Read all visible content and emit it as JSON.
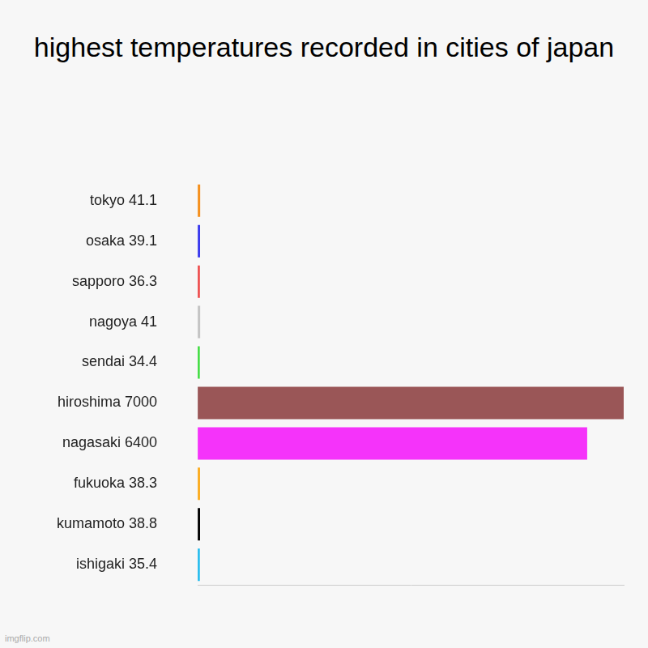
{
  "chart_data": {
    "type": "bar",
    "title": "highest temperatures recorded in cities of japan",
    "categories": [
      "tokyo 41.1",
      "osaka 39.1",
      "sapporo 36.3",
      "nagoya 41",
      "sendai 34.4",
      "hiroshima 7000",
      "nagasaki 6400",
      "fukuoka 38.3",
      "kumamoto 38.8",
      "ishigaki 35.4"
    ],
    "values": [
      41.1,
      39.1,
      36.3,
      41,
      34.4,
      7000,
      6400,
      38.3,
      38.8,
      35.4
    ],
    "colors": [
      "#f5901e",
      "#3a3aee",
      "#ee4b4b",
      "#c4c4c4",
      "#3fdd3f",
      "#9a5657",
      "#f533fa",
      "#fbab1c",
      "#000000",
      "#22bbee"
    ],
    "orientation": "horizontal",
    "xlim": [
      0,
      7000
    ],
    "grid": false,
    "tick_labels": "y",
    "annotations": [
      "imgflip.com"
    ]
  }
}
